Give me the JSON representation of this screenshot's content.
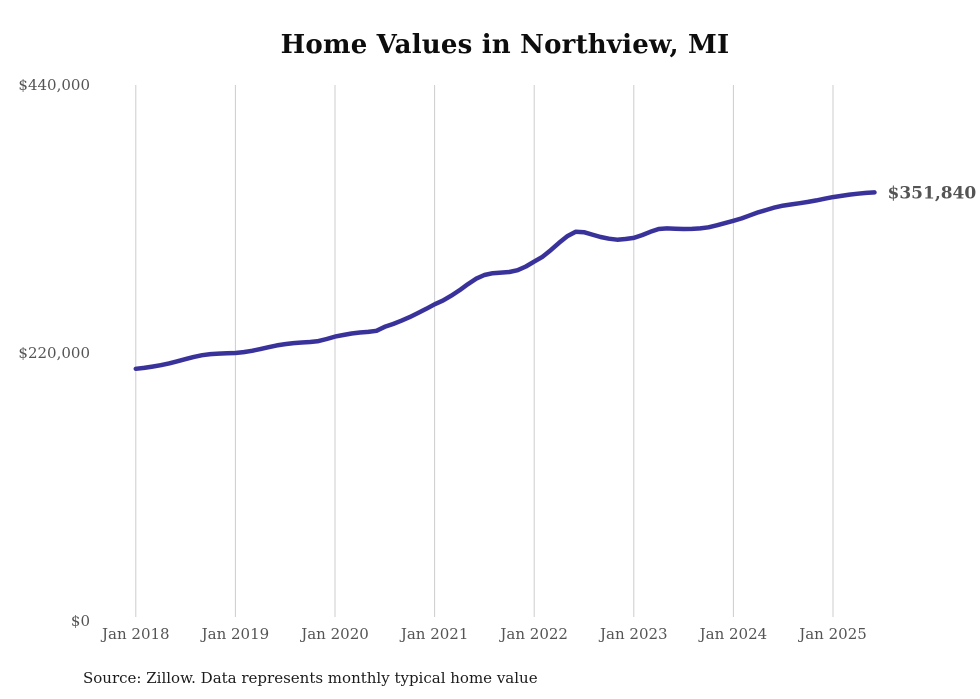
{
  "chart": {
    "title": "Home Values in Northview, MI",
    "source": "Source: Zillow. Data represents monthly typical home value",
    "end_label": "$351,840",
    "accent_color": "#39329b",
    "gridline_color": "#cccccc",
    "tick_label_color": "#545454"
  },
  "chart_data": {
    "type": "line",
    "title": "Home Values in Northview, MI",
    "xlabel": "",
    "ylabel": "",
    "ylim": [
      0,
      440000
    ],
    "grid": "vertical-year-gridlines-only",
    "legend": "none",
    "x_tick_labels": [
      "Jan 2018",
      "Jan 2019",
      "Jan 2020",
      "Jan 2021",
      "Jan 2022",
      "Jan 2023",
      "Jan 2024",
      "Jan 2025"
    ],
    "y_ticks": [
      {
        "value": 440000,
        "label": "$440,000"
      },
      {
        "value": 220000,
        "label": "$220,000"
      },
      {
        "value": 0,
        "label": "$0"
      }
    ],
    "annotations": [
      {
        "text": "$351,840",
        "position": "line-end"
      }
    ],
    "series": [
      {
        "name": "Typical home value",
        "color": "#39329b",
        "frequency": "monthly",
        "start": "Jan 2018",
        "end": "Jun 2025",
        "final_value": 351840,
        "final_value_label": "$351,840",
        "values": [
          207000,
          207800,
          208800,
          210000,
          211500,
          213200,
          215000,
          216800,
          218200,
          219100,
          219500,
          219800,
          220000,
          220700,
          221800,
          223200,
          224800,
          226200,
          227300,
          228100,
          228600,
          229000,
          229800,
          231500,
          233500,
          234800,
          236000,
          236800,
          237300,
          238200,
          241500,
          243800,
          246500,
          249500,
          252800,
          256300,
          260000,
          263000,
          267000,
          271500,
          276500,
          281000,
          284000,
          285500,
          286000,
          286500,
          288000,
          291000,
          295000,
          299000,
          304500,
          310500,
          316000,
          319500,
          319200,
          317200,
          315200,
          313800,
          313000,
          313600,
          314500,
          316800,
          319500,
          321800,
          322300,
          322000,
          321800,
          321900,
          322300,
          323200,
          324800,
          326600,
          328500,
          330500,
          333000,
          335500,
          337500,
          339500,
          341000,
          342000,
          343000,
          344000,
          345300,
          346700,
          348000,
          349000,
          350000,
          350800,
          351400,
          351840
        ]
      }
    ]
  }
}
